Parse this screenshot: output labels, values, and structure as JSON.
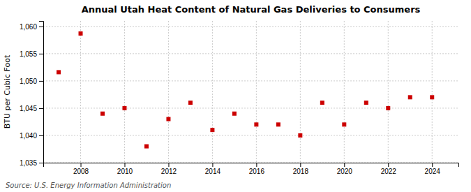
{
  "chart_data": {
    "type": "scatter",
    "title": "Annual Utah Heat Content of Natural Gas Deliveries to Consumers",
    "ylabel": "BTU per Cubic Foot",
    "annotation": "Source: U.S. Energy Information Administration",
    "x": [
      2007,
      2008,
      2009,
      2010,
      2011,
      2012,
      2013,
      2014,
      2015,
      2016,
      2017,
      2018,
      2019,
      2020,
      2021,
      2022,
      2023,
      2024
    ],
    "values": [
      1051.6,
      1058.7,
      1044.0,
      1045.0,
      1038.0,
      1043.0,
      1046.0,
      1041.0,
      1044.0,
      1042.0,
      1042.0,
      1040.0,
      1046.0,
      1042.0,
      1046.0,
      1045.0,
      1047.0,
      1047.0
    ],
    "color": "#cc0000",
    "marker": "square",
    "grid": true,
    "xlim": [
      2006.3,
      2025.2
    ],
    "ylim": [
      1035,
      1061
    ],
    "xticks": [
      2008,
      2010,
      2012,
      2014,
      2016,
      2018,
      2020,
      2022,
      2024
    ],
    "yticks": [
      {
        "value": 1035,
        "label": "1,035"
      },
      {
        "value": 1040,
        "label": "1,040"
      },
      {
        "value": 1045,
        "label": "1,045"
      },
      {
        "value": 1050,
        "label": "1,050"
      },
      {
        "value": 1055,
        "label": "1,055"
      },
      {
        "value": 1060,
        "label": "1,060"
      }
    ]
  }
}
